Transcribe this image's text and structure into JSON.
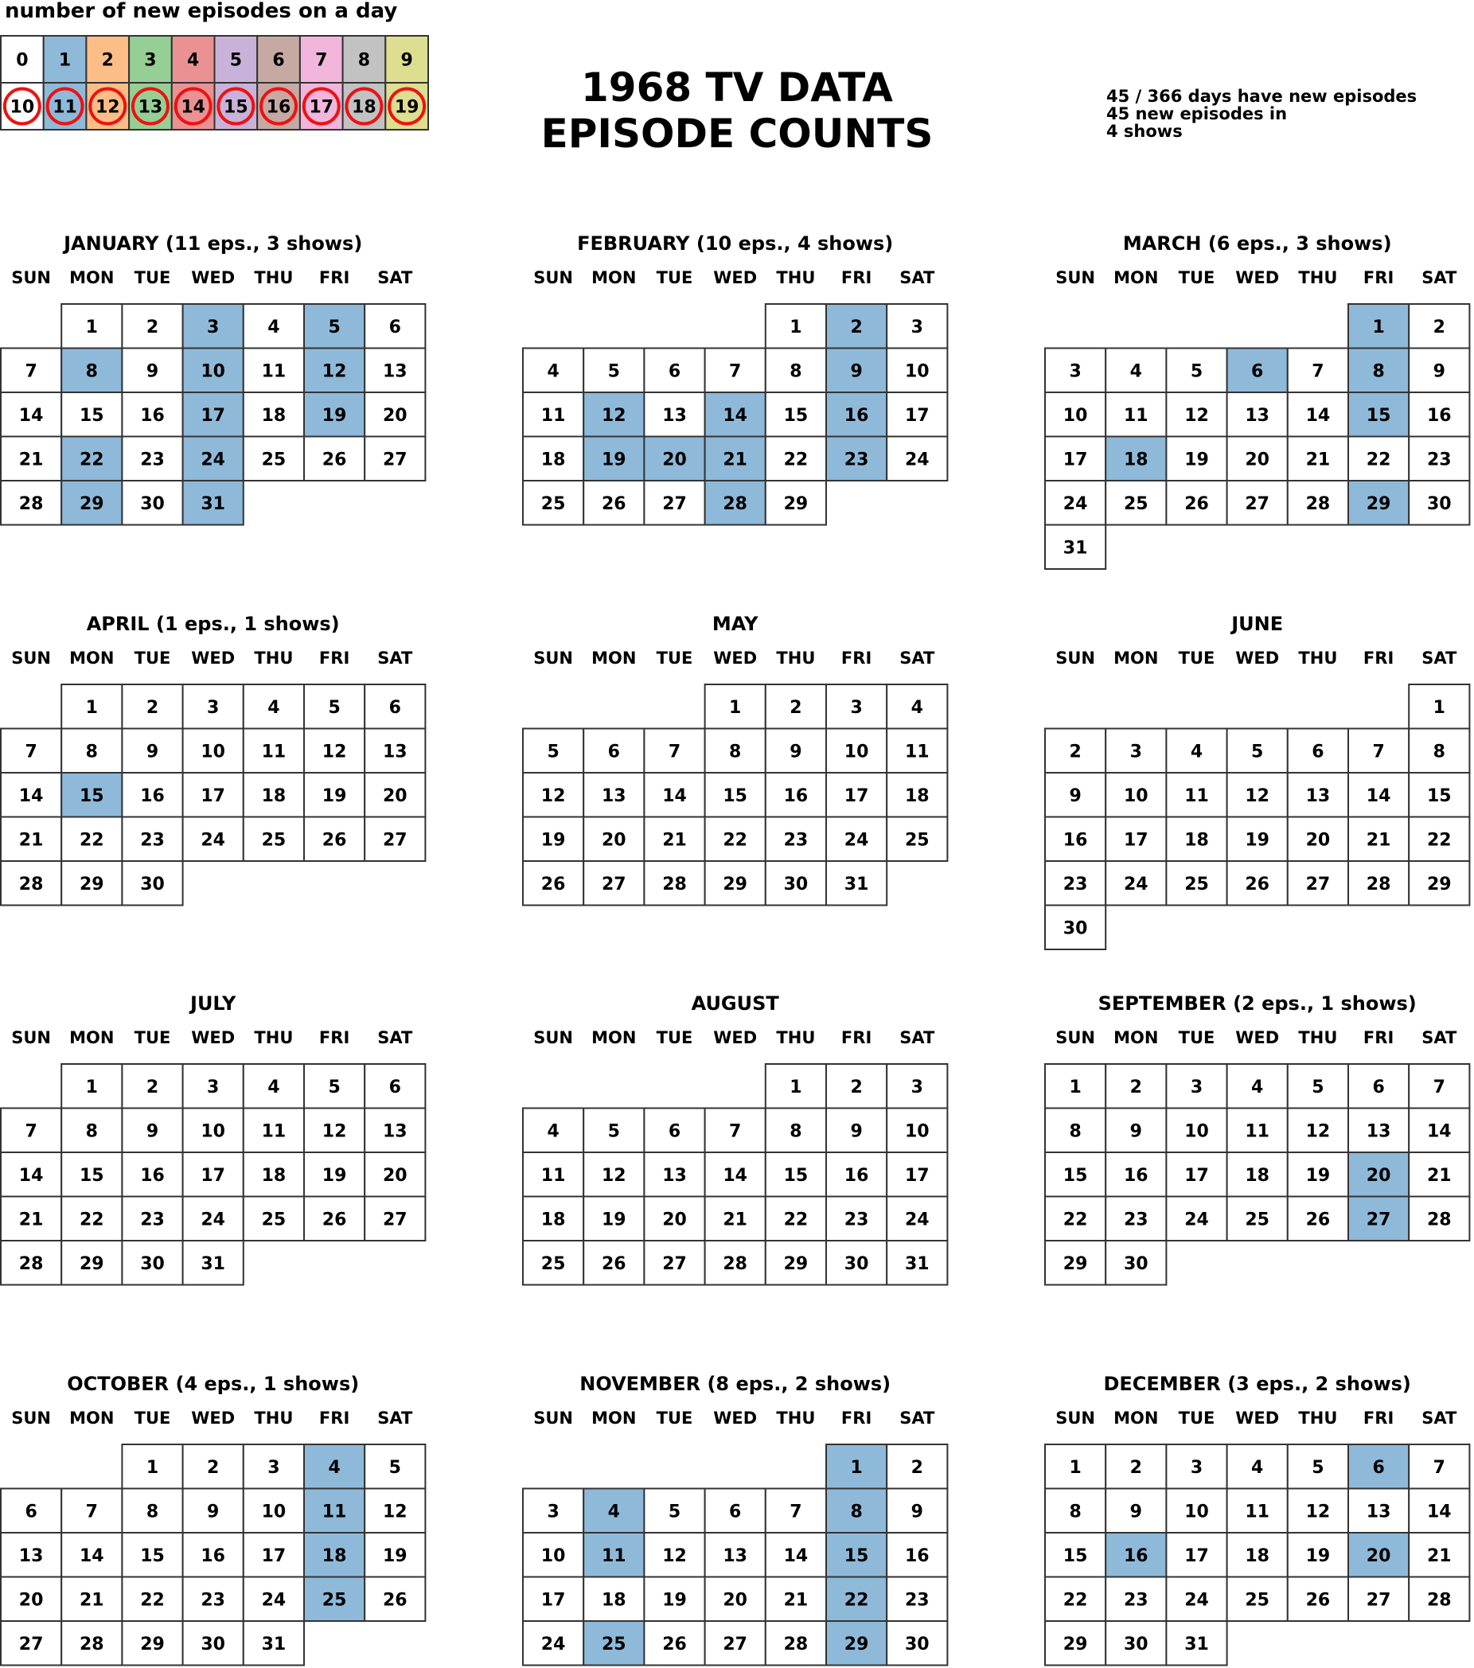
{
  "title_line1": "1968 TV DATA",
  "title_line2": "EPISODE COUNTS",
  "legend": {
    "title": "number of new episodes on a day",
    "counts": [
      0,
      1,
      2,
      3,
      4,
      5,
      6,
      7,
      8,
      9,
      10,
      11,
      12,
      13,
      14,
      15,
      16,
      17,
      18,
      19
    ],
    "colors": [
      "#ffffff",
      "#8fb9d9",
      "#fcbe86",
      "#95cf95",
      "#ea9293",
      "#c9b2d9",
      "#c7a9a3",
      "#f2b6dc",
      "#c2c2c2",
      "#dede90"
    ],
    "ring_color": "#ee1111"
  },
  "stats": {
    "line1": "45 / 366 days have new episodes",
    "line2": "45 new episodes in",
    "line3": "4 shows"
  },
  "weekdays": [
    "SUN",
    "MON",
    "TUE",
    "WED",
    "THU",
    "FRI",
    "SAT"
  ],
  "chart_data": {
    "type": "heatmap",
    "year": 1968,
    "months": [
      {
        "title": "JANUARY (11 eps., 3 shows)",
        "first_weekday": 1,
        "days": 31,
        "episodes": {
          "3": 1,
          "5": 1,
          "8": 1,
          "10": 1,
          "12": 1,
          "17": 1,
          "19": 1,
          "22": 1,
          "24": 1,
          "29": 1,
          "31": 1
        }
      },
      {
        "title": "FEBRUARY (10 eps., 4 shows)",
        "first_weekday": 4,
        "days": 29,
        "episodes": {
          "2": 1,
          "9": 1,
          "12": 1,
          "14": 1,
          "16": 1,
          "19": 1,
          "20": 1,
          "21": 1,
          "23": 1,
          "28": 1
        }
      },
      {
        "title": "MARCH (6 eps., 3 shows)",
        "first_weekday": 5,
        "days": 31,
        "episodes": {
          "1": 1,
          "6": 1,
          "8": 1,
          "15": 1,
          "18": 1,
          "29": 1
        }
      },
      {
        "title": "APRIL (1 eps., 1 shows)",
        "first_weekday": 1,
        "days": 30,
        "episodes": {
          "15": 1
        }
      },
      {
        "title": "MAY",
        "first_weekday": 3,
        "days": 31,
        "episodes": {}
      },
      {
        "title": "JUNE",
        "first_weekday": 6,
        "days": 30,
        "episodes": {}
      },
      {
        "title": "JULY",
        "first_weekday": 1,
        "days": 31,
        "episodes": {}
      },
      {
        "title": "AUGUST",
        "first_weekday": 4,
        "days": 31,
        "episodes": {}
      },
      {
        "title": "SEPTEMBER (2 eps., 1 shows)",
        "first_weekday": 0,
        "days": 30,
        "episodes": {
          "20": 1,
          "27": 1
        }
      },
      {
        "title": "OCTOBER (4 eps., 1 shows)",
        "first_weekday": 2,
        "days": 31,
        "episodes": {
          "4": 1,
          "11": 1,
          "18": 1,
          "25": 1
        }
      },
      {
        "title": "NOVEMBER (8 eps., 2 shows)",
        "first_weekday": 5,
        "days": 30,
        "episodes": {
          "1": 1,
          "4": 1,
          "8": 1,
          "11": 1,
          "15": 1,
          "22": 1,
          "25": 1,
          "29": 1
        }
      },
      {
        "title": "DECEMBER (3 eps., 2 shows)",
        "first_weekday": 0,
        "days": 31,
        "episodes": {
          "6": 1,
          "16": 1,
          "20": 1
        }
      }
    ]
  }
}
